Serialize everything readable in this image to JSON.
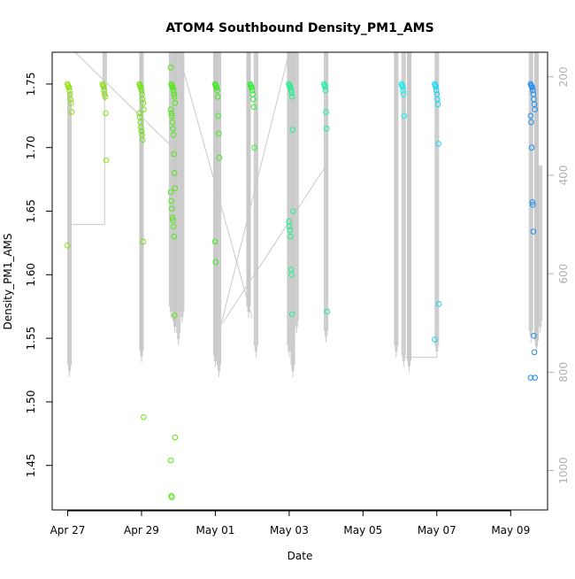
{
  "chart_data": {
    "type": "scatter",
    "title": "ATOM4 Southbound Density_PM1_AMS",
    "xlabel": "Date",
    "ylabel": "Density_PM1_AMS",
    "x_ticks": [
      "Apr 27",
      "Apr 29",
      "May 01",
      "May 03",
      "May 05",
      "May 07",
      "May 09"
    ],
    "y_ticks": [
      "1.45",
      "1.50",
      "1.55",
      "1.60",
      "1.65",
      "1.70",
      "1.75"
    ],
    "y2_ticks": [
      "200",
      "400",
      "600",
      "800",
      "1000"
    ],
    "xlim_days_from_apr27": [
      -0.42,
      13.0
    ],
    "ylim": [
      1.415,
      1.775
    ],
    "y2lim": [
      1080,
      150
    ],
    "colors": {
      "series_start": "#7FE00A",
      "series_end": "#1E90FF",
      "altitude_line": "#c8c8c8",
      "axis": "#000000",
      "right_axis": "#b0b0b0"
    },
    "clusters": [
      {
        "date": "Apr 27",
        "day": 0.05,
        "points": [
          1.75,
          1.749,
          1.748,
          1.747,
          1.745,
          1.742,
          1.738,
          1.735,
          1.728,
          1.623
        ],
        "color": "#8FE00A"
      },
      {
        "date": "Apr 28",
        "day": 1.0,
        "points": [
          1.75,
          1.749,
          1.748,
          1.745,
          1.742,
          1.74,
          1.727,
          1.69
        ],
        "color": "#86E20C"
      },
      {
        "date": "Apr 29",
        "day": 2.0,
        "points": [
          1.75,
          1.749,
          1.748,
          1.747,
          1.745,
          1.742,
          1.738,
          1.735,
          1.73,
          1.727,
          1.724,
          1.72,
          1.716,
          1.713,
          1.71,
          1.706,
          1.626,
          1.488
        ],
        "color": "#6FE30E"
      },
      {
        "date": "Apr 30",
        "day": 2.85,
        "points": [
          1.763,
          1.75,
          1.749,
          1.748,
          1.747,
          1.745,
          1.742,
          1.74,
          1.735,
          1.73,
          1.727,
          1.725,
          1.72,
          1.715,
          1.71,
          1.695,
          1.68,
          1.668,
          1.665,
          1.658,
          1.652,
          1.645,
          1.643,
          1.638,
          1.63,
          1.568,
          1.472,
          1.454,
          1.426,
          1.425
        ],
        "color": "#52E812"
      },
      {
        "date": "May 01",
        "day": 4.05,
        "points": [
          1.75,
          1.749,
          1.748,
          1.747,
          1.745,
          1.74,
          1.725,
          1.711,
          1.692,
          1.626,
          1.61
        ],
        "color": "#3DEB1C"
      },
      {
        "date": "May 02",
        "day": 5.0,
        "points": [
          1.75,
          1.749,
          1.748,
          1.747,
          1.745,
          1.742,
          1.738,
          1.732,
          1.7
        ],
        "color": "#2EEE30"
      },
      {
        "date": "May 03",
        "day": 6.05,
        "points": [
          1.75,
          1.749,
          1.748,
          1.747,
          1.745,
          1.743,
          1.74,
          1.714,
          1.65,
          1.642,
          1.638,
          1.635,
          1.63,
          1.604,
          1.6,
          1.569
        ],
        "color": "#1FF08A"
      },
      {
        "date": "May 04",
        "day": 7.0,
        "points": [
          1.75,
          1.749,
          1.748,
          1.745,
          1.728,
          1.715,
          1.571
        ],
        "color": "#19F0A5"
      },
      {
        "date": "May 06",
        "day": 9.1,
        "points": [
          1.75,
          1.749,
          1.748,
          1.745,
          1.742,
          1.725
        ],
        "color": "#12EEEE"
      },
      {
        "date": "May 07",
        "day": 10.0,
        "points": [
          1.75,
          1.749,
          1.748,
          1.745,
          1.742,
          1.738,
          1.734,
          1.703,
          1.577,
          1.549
        ],
        "color": "#14D8F5"
      },
      {
        "date": "May 09",
        "day": 12.6,
        "points": [
          1.75,
          1.749,
          1.748,
          1.747,
          1.745,
          1.742,
          1.738,
          1.734,
          1.73,
          1.725,
          1.72,
          1.7,
          1.657,
          1.655,
          1.634,
          1.552,
          1.539,
          1.519,
          1.519
        ],
        "color": "#1E8CF0"
      }
    ],
    "altitude_spikes": [
      {
        "day": 0.05,
        "min": 230,
        "max": 810
      },
      {
        "day": 1.0,
        "min": 150,
        "max": 260
      },
      {
        "day": 2.0,
        "min": 150,
        "max": 780
      },
      {
        "day": 2.8,
        "min": 150,
        "max": 690
      },
      {
        "day": 2.9,
        "min": 150,
        "max": 720
      },
      {
        "day": 3.0,
        "min": 150,
        "max": 745
      },
      {
        "day": 3.1,
        "min": 150,
        "max": 700
      },
      {
        "day": 4.0,
        "min": 150,
        "max": 790
      },
      {
        "day": 4.1,
        "min": 150,
        "max": 810
      },
      {
        "day": 4.9,
        "min": 150,
        "max": 690
      },
      {
        "day": 5.1,
        "min": 150,
        "max": 770
      },
      {
        "day": 6.0,
        "min": 150,
        "max": 770
      },
      {
        "day": 6.1,
        "min": 150,
        "max": 810
      },
      {
        "day": 6.2,
        "min": 150,
        "max": 720
      },
      {
        "day": 7.0,
        "min": 150,
        "max": 740
      },
      {
        "day": 8.9,
        "min": 150,
        "max": 770
      },
      {
        "day": 9.1,
        "min": 150,
        "max": 790
      },
      {
        "day": 9.25,
        "min": 150,
        "max": 800
      },
      {
        "day": 10.0,
        "min": 150,
        "max": 770
      },
      {
        "day": 12.55,
        "min": 150,
        "max": 740
      },
      {
        "day": 12.7,
        "min": 150,
        "max": 760
      },
      {
        "day": 12.8,
        "min": 380,
        "max": 720
      }
    ]
  }
}
